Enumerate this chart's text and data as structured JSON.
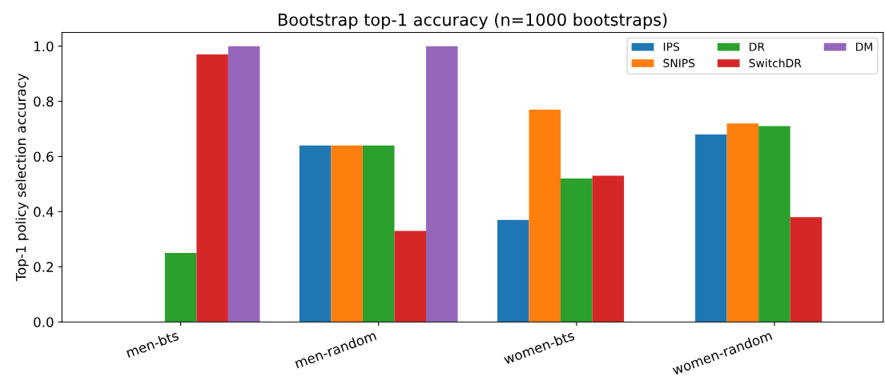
{
  "chart_data": {
    "type": "bar",
    "title": "Bootstrap top-1 accuracy (n=1000 bootstraps)",
    "ylabel": "Top-1 policy selection accuracy",
    "categories": [
      "men-bts",
      "men-random",
      "women-bts",
      "women-random"
    ],
    "series": [
      {
        "name": "IPS",
        "color": "#1f77b4",
        "values": [
          0,
          0.64,
          0.37,
          0.68
        ]
      },
      {
        "name": "SNIPS",
        "color": "#ff7f0e",
        "values": [
          0,
          0.64,
          0.77,
          0.72
        ]
      },
      {
        "name": "DR",
        "color": "#2ca02c",
        "values": [
          0.25,
          0.64,
          0.52,
          0.71
        ]
      },
      {
        "name": "SwitchDR",
        "color": "#d62728",
        "values": [
          0.97,
          0.33,
          0.53,
          0.38
        ]
      },
      {
        "name": "DM",
        "color": "#9467bd",
        "values": [
          1.0,
          1.0,
          0,
          0
        ]
      }
    ],
    "ylim": [
      0,
      1.05
    ],
    "yticks": [
      {
        "value": 0,
        "label": "0.0"
      },
      {
        "value": 0.2,
        "label": "0.2"
      },
      {
        "value": 0.4,
        "label": "0.4"
      },
      {
        "value": 0.6,
        "label": "0.6"
      },
      {
        "value": 0.8,
        "label": "0.8"
      },
      {
        "value": 1.0,
        "label": "1.0"
      }
    ],
    "grid": false,
    "legend": "top right"
  }
}
